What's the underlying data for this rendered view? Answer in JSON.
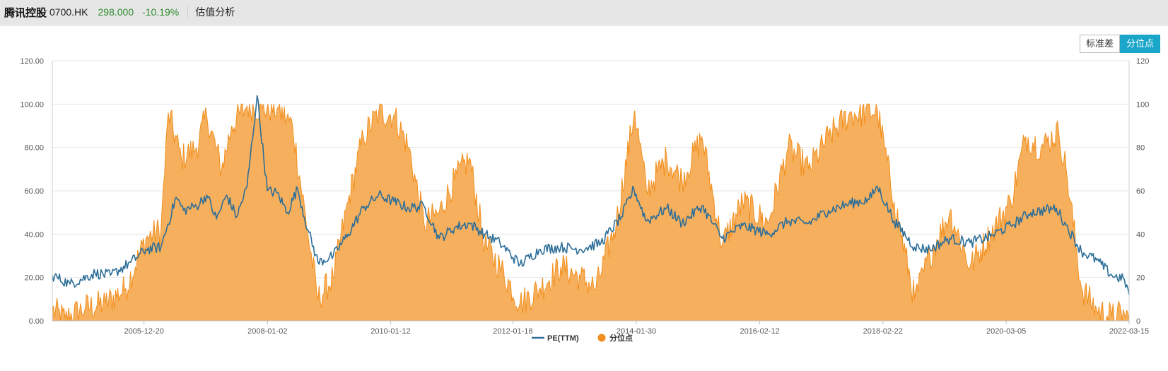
{
  "header": {
    "name": "腾讯控股",
    "code": "0700.HK",
    "price": "298.000",
    "change": "-10.19%",
    "section": "估值分析"
  },
  "toggle": {
    "std_label": "标准差",
    "pct_label": "分位点",
    "active": "pct"
  },
  "colors": {
    "pe": "#2d6e98",
    "pct": "#f28e1c",
    "pct_fill": "#f5a94f",
    "grid": "#e6e6e6",
    "up": "#2e8b2e"
  },
  "chart_data": {
    "type": "line+area",
    "x_range": [
      "2004-06-16",
      "2022-03-15"
    ],
    "x_ticks": [
      "2005-12-20",
      "2008-01-02",
      "2010-01-12",
      "2012-01-18",
      "2014-01-30",
      "2016-02-12",
      "2018-02-22",
      "2020-03-05",
      "2022-03-15"
    ],
    "y_left": {
      "ticks": [
        "0.00",
        "20.00",
        "40.00",
        "60.00",
        "80.00",
        "100.00",
        "120.00"
      ],
      "min": 0,
      "max": 120
    },
    "y_right": {
      "ticks": [
        "0",
        "20",
        "40",
        "60",
        "80",
        "100",
        "120"
      ],
      "min": 0,
      "max": 120
    },
    "legend": [
      "PE(TTM)",
      "分位点"
    ],
    "series": [
      {
        "name": "PE(TTM)",
        "axis": "left",
        "style": "line",
        "points": [
          [
            "2004-06-16",
            21
          ],
          [
            "2004-10-01",
            17
          ],
          [
            "2005-03-01",
            22
          ],
          [
            "2005-06-01",
            21
          ],
          [
            "2005-10-01",
            27
          ],
          [
            "2006-01-01",
            33
          ],
          [
            "2006-04-01",
            34
          ],
          [
            "2006-07-01",
            57
          ],
          [
            "2006-08-15",
            51
          ],
          [
            "2006-11-01",
            53
          ],
          [
            "2007-01-01",
            58
          ],
          [
            "2007-03-01",
            47
          ],
          [
            "2007-05-01",
            58
          ],
          [
            "2007-07-01",
            48
          ],
          [
            "2007-09-01",
            62
          ],
          [
            "2007-11-01",
            104
          ],
          [
            "2008-01-01",
            60
          ],
          [
            "2008-03-01",
            59
          ],
          [
            "2008-05-01",
            50
          ],
          [
            "2008-07-01",
            61
          ],
          [
            "2008-09-01",
            42
          ],
          [
            "2008-11-01",
            27
          ],
          [
            "2009-02-01",
            30
          ],
          [
            "2009-05-01",
            40
          ],
          [
            "2009-08-01",
            52
          ],
          [
            "2009-11-01",
            58
          ],
          [
            "2010-02-01",
            55
          ],
          [
            "2010-05-01",
            52
          ],
          [
            "2010-08-01",
            53
          ],
          [
            "2010-11-01",
            38
          ],
          [
            "2011-02-01",
            43
          ],
          [
            "2011-05-01",
            45
          ],
          [
            "2011-08-01",
            40
          ],
          [
            "2011-11-01",
            36
          ],
          [
            "2012-03-01",
            26
          ],
          [
            "2012-07-01",
            33
          ],
          [
            "2012-11-01",
            34
          ],
          [
            "2013-03-01",
            33
          ],
          [
            "2013-07-01",
            36
          ],
          [
            "2013-11-01",
            48
          ],
          [
            "2014-01-15",
            61
          ],
          [
            "2014-04-01",
            46
          ],
          [
            "2014-08-01",
            52
          ],
          [
            "2014-11-01",
            45
          ],
          [
            "2015-03-01",
            53
          ],
          [
            "2015-07-01",
            38
          ],
          [
            "2015-11-01",
            44
          ],
          [
            "2016-04-01",
            40
          ],
          [
            "2016-08-01",
            46
          ],
          [
            "2016-12-01",
            45
          ],
          [
            "2017-04-01",
            51
          ],
          [
            "2017-08-01",
            54
          ],
          [
            "2017-12-01",
            56
          ],
          [
            "2018-01-20",
            62
          ],
          [
            "2018-05-01",
            46
          ],
          [
            "2018-09-01",
            34
          ],
          [
            "2018-12-01",
            33
          ],
          [
            "2019-04-01",
            38
          ],
          [
            "2019-08-01",
            36
          ],
          [
            "2019-12-01",
            39
          ],
          [
            "2020-04-01",
            44
          ],
          [
            "2020-08-01",
            50
          ],
          [
            "2021-01-01",
            52
          ],
          [
            "2021-03-01",
            44
          ],
          [
            "2021-06-01",
            32
          ],
          [
            "2021-09-01",
            28
          ],
          [
            "2021-12-01",
            21
          ],
          [
            "2022-02-15",
            19
          ],
          [
            "2022-03-15",
            12
          ]
        ]
      },
      {
        "name": "分位点",
        "axis": "right",
        "style": "area",
        "points": [
          [
            "2004-06-16",
            5
          ],
          [
            "2004-09-01",
            1
          ],
          [
            "2005-01-01",
            6
          ],
          [
            "2005-05-01",
            8
          ],
          [
            "2005-09-01",
            15
          ],
          [
            "2006-01-01",
            38
          ],
          [
            "2006-04-01",
            42
          ],
          [
            "2006-05-15",
            96
          ],
          [
            "2006-08-01",
            75
          ],
          [
            "2006-11-01",
            80
          ],
          [
            "2007-01-01",
            95
          ],
          [
            "2007-04-01",
            70
          ],
          [
            "2007-06-01",
            90
          ],
          [
            "2007-09-01",
            99
          ],
          [
            "2007-12-01",
            98
          ],
          [
            "2008-03-01",
            98
          ],
          [
            "2008-06-01",
            90
          ],
          [
            "2008-09-01",
            40
          ],
          [
            "2008-11-01",
            10
          ],
          [
            "2009-02-01",
            20
          ],
          [
            "2009-05-01",
            55
          ],
          [
            "2009-08-01",
            85
          ],
          [
            "2009-11-01",
            96
          ],
          [
            "2010-02-01",
            95
          ],
          [
            "2010-05-01",
            80
          ],
          [
            "2010-08-01",
            45
          ],
          [
            "2010-11-01",
            50
          ],
          [
            "2011-02-01",
            65
          ],
          [
            "2011-05-01",
            75
          ],
          [
            "2011-08-01",
            35
          ],
          [
            "2011-11-01",
            25
          ],
          [
            "2012-03-01",
            8
          ],
          [
            "2012-07-01",
            15
          ],
          [
            "2012-11-01",
            25
          ],
          [
            "2013-03-01",
            20
          ],
          [
            "2013-06-01",
            15
          ],
          [
            "2013-10-01",
            45
          ],
          [
            "2014-01-20",
            97
          ],
          [
            "2014-04-01",
            60
          ],
          [
            "2014-08-01",
            75
          ],
          [
            "2014-11-01",
            65
          ],
          [
            "2015-03-01",
            85
          ],
          [
            "2015-07-01",
            35
          ],
          [
            "2015-11-01",
            55
          ],
          [
            "2016-04-01",
            45
          ],
          [
            "2016-08-01",
            80
          ],
          [
            "2016-12-01",
            70
          ],
          [
            "2017-04-01",
            85
          ],
          [
            "2017-08-01",
            95
          ],
          [
            "2018-01-20",
            97
          ],
          [
            "2018-05-01",
            55
          ],
          [
            "2018-09-01",
            10
          ],
          [
            "2018-12-01",
            30
          ],
          [
            "2019-04-01",
            50
          ],
          [
            "2019-08-01",
            25
          ],
          [
            "2019-12-01",
            40
          ],
          [
            "2020-04-01",
            55
          ],
          [
            "2020-07-01",
            85
          ],
          [
            "2020-10-01",
            80
          ],
          [
            "2021-01-15",
            87
          ],
          [
            "2021-03-01",
            70
          ],
          [
            "2021-06-01",
            15
          ],
          [
            "2021-09-01",
            5
          ],
          [
            "2021-12-01",
            2
          ],
          [
            "2022-02-15",
            3
          ],
          [
            "2022-03-15",
            0
          ]
        ]
      }
    ]
  }
}
